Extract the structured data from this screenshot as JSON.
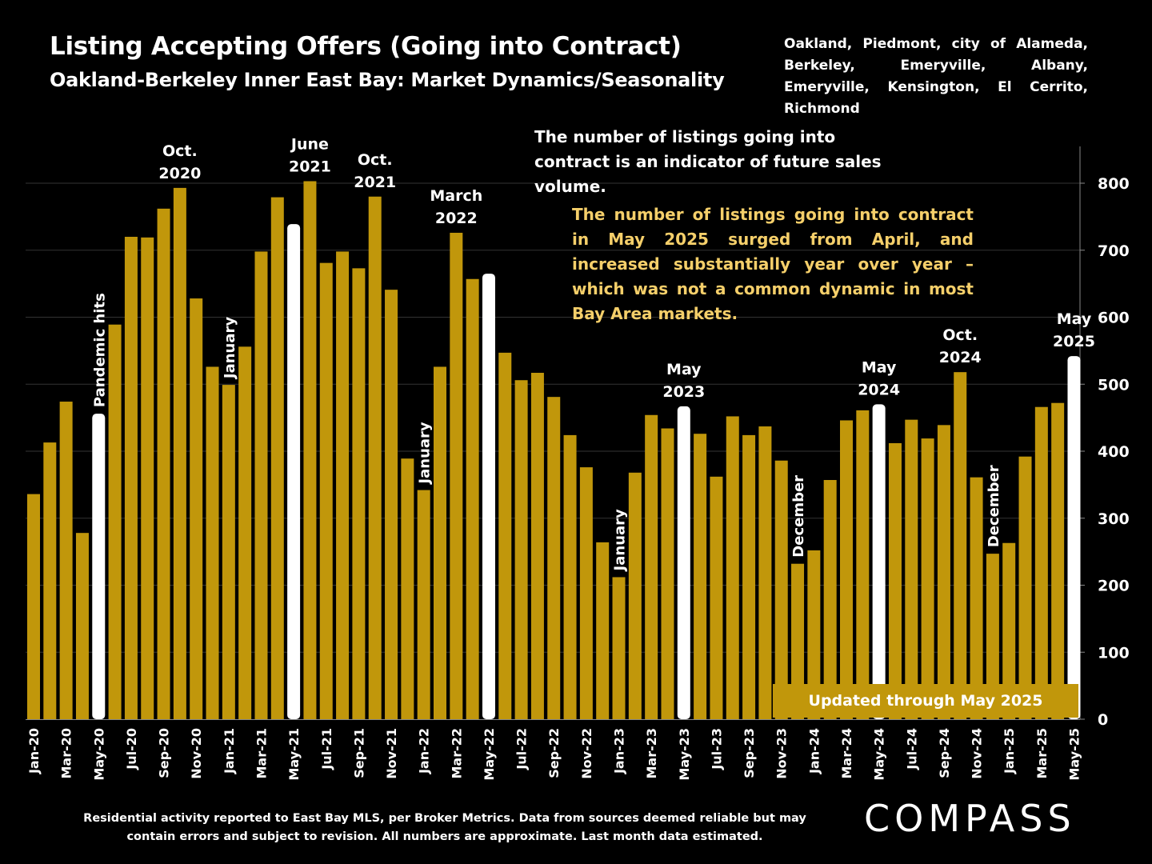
{
  "header": {
    "title": "Listing Accepting Offers (Going into Contract)",
    "subtitle": "Oakland-Berkeley Inner East Bay: Market Dynamics/Seasonality",
    "areas": "Oakland, Piedmont, city of Alameda, Berkeley, Emeryville, Albany, Emeryville, Kensington, El Cerrito, Richmond"
  },
  "notes": {
    "note1": "The number of listings going into contract is an indicator of future sales volume.",
    "note2": "The number of listings going into contract in May 2025 surged from April, and increased substantially year over year – which was not a common dynamic in most Bay Area markets.",
    "updated": "Updated through May 2025"
  },
  "footnote": "Residential activity reported to East Bay MLS, per Broker Metrics. Data from sources deemed reliable but may contain errors and subject to revision. All numbers are approximate. Last month data estimated.",
  "logo": "COMPASS",
  "colors": {
    "bar": "#c1970b",
    "highlight": "#ffffff",
    "note": "#f5cf6a",
    "background": "#000000"
  },
  "chart_data": {
    "type": "bar",
    "categories": [
      "Jan-20",
      "Feb-20",
      "Mar-20",
      "Apr-20",
      "May-20",
      "Jun-20",
      "Jul-20",
      "Aug-20",
      "Sep-20",
      "Oct-20",
      "Nov-20",
      "Dec-20",
      "Jan-21",
      "Feb-21",
      "Mar-21",
      "Apr-21",
      "May-21",
      "Jun-21",
      "Jul-21",
      "Aug-21",
      "Sep-21",
      "Oct-21",
      "Nov-21",
      "Dec-21",
      "Jan-22",
      "Feb-22",
      "Mar-22",
      "Apr-22",
      "May-22",
      "Jun-22",
      "Jul-22",
      "Aug-22",
      "Sep-22",
      "Oct-22",
      "Nov-22",
      "Dec-22",
      "Jan-23",
      "Feb-23",
      "Mar-23",
      "Apr-23",
      "May-23",
      "Jun-23",
      "Jul-23",
      "Aug-23",
      "Sep-23",
      "Oct-23",
      "Nov-23",
      "Dec-23",
      "Jan-24",
      "Feb-24",
      "Mar-24",
      "Apr-24",
      "May-24",
      "Jun-24",
      "Jul-24",
      "Aug-24",
      "Sep-24",
      "Oct-24",
      "Nov-24",
      "Dec-24",
      "Jan-25",
      "Feb-25",
      "Mar-25",
      "Apr-25",
      "May-25"
    ],
    "x_tick_labels": [
      "Jan-20",
      "Mar-20",
      "May-20",
      "Jul-20",
      "Sep-20",
      "Nov-20",
      "Jan-21",
      "Mar-21",
      "May-21",
      "Jul-21",
      "Sep-21",
      "Nov-21",
      "Jan-22",
      "Mar-22",
      "May-22",
      "Jul-22",
      "Sep-22",
      "Nov-22",
      "Jan-23",
      "Mar-23",
      "May-23",
      "Jul-23",
      "Sep-23",
      "Nov-23",
      "Jan-24",
      "Mar-24",
      "May-24",
      "Jul-24",
      "Sep-24",
      "Nov-24",
      "Jan-25",
      "Mar-25",
      "May-25"
    ],
    "values": [
      336,
      413,
      474,
      278,
      456,
      589,
      720,
      719,
      762,
      793,
      628,
      526,
      499,
      556,
      698,
      779,
      739,
      803,
      681,
      698,
      673,
      780,
      641,
      389,
      342,
      526,
      726,
      657,
      665,
      547,
      506,
      517,
      481,
      424,
      376,
      264,
      212,
      368,
      454,
      434,
      467,
      426,
      362,
      452,
      424,
      437,
      386,
      232,
      252,
      357,
      446,
      461,
      470,
      412,
      447,
      419,
      439,
      518,
      361,
      247,
      263,
      392,
      466,
      472,
      542
    ],
    "highlight_indices": [
      4,
      16,
      28,
      40,
      52,
      64
    ],
    "ylim": [
      0,
      850
    ],
    "yticks": [
      0,
      100,
      200,
      300,
      400,
      500,
      600,
      700,
      800
    ],
    "grid": true,
    "annotations": [
      {
        "index": 4,
        "text": "Pandemic hits",
        "rotated": true
      },
      {
        "index": 9,
        "text": "Oct.\n2020"
      },
      {
        "index": 12,
        "text": "January",
        "rotated": true
      },
      {
        "index": 17,
        "text": "June\n2021"
      },
      {
        "index": 21,
        "text": "Oct.\n2021"
      },
      {
        "index": 24,
        "text": "January",
        "rotated": true
      },
      {
        "index": 26,
        "text": "March\n2022"
      },
      {
        "index": 36,
        "text": "January",
        "rotated": true
      },
      {
        "index": 40,
        "text": "May\n2023"
      },
      {
        "index": 47,
        "text": "December",
        "rotated": true
      },
      {
        "index": 52,
        "text": "May\n2024"
      },
      {
        "index": 57,
        "text": "Oct.\n2024"
      },
      {
        "index": 59,
        "text": "December",
        "rotated": true
      },
      {
        "index": 64,
        "text": "May\n2025"
      }
    ]
  }
}
